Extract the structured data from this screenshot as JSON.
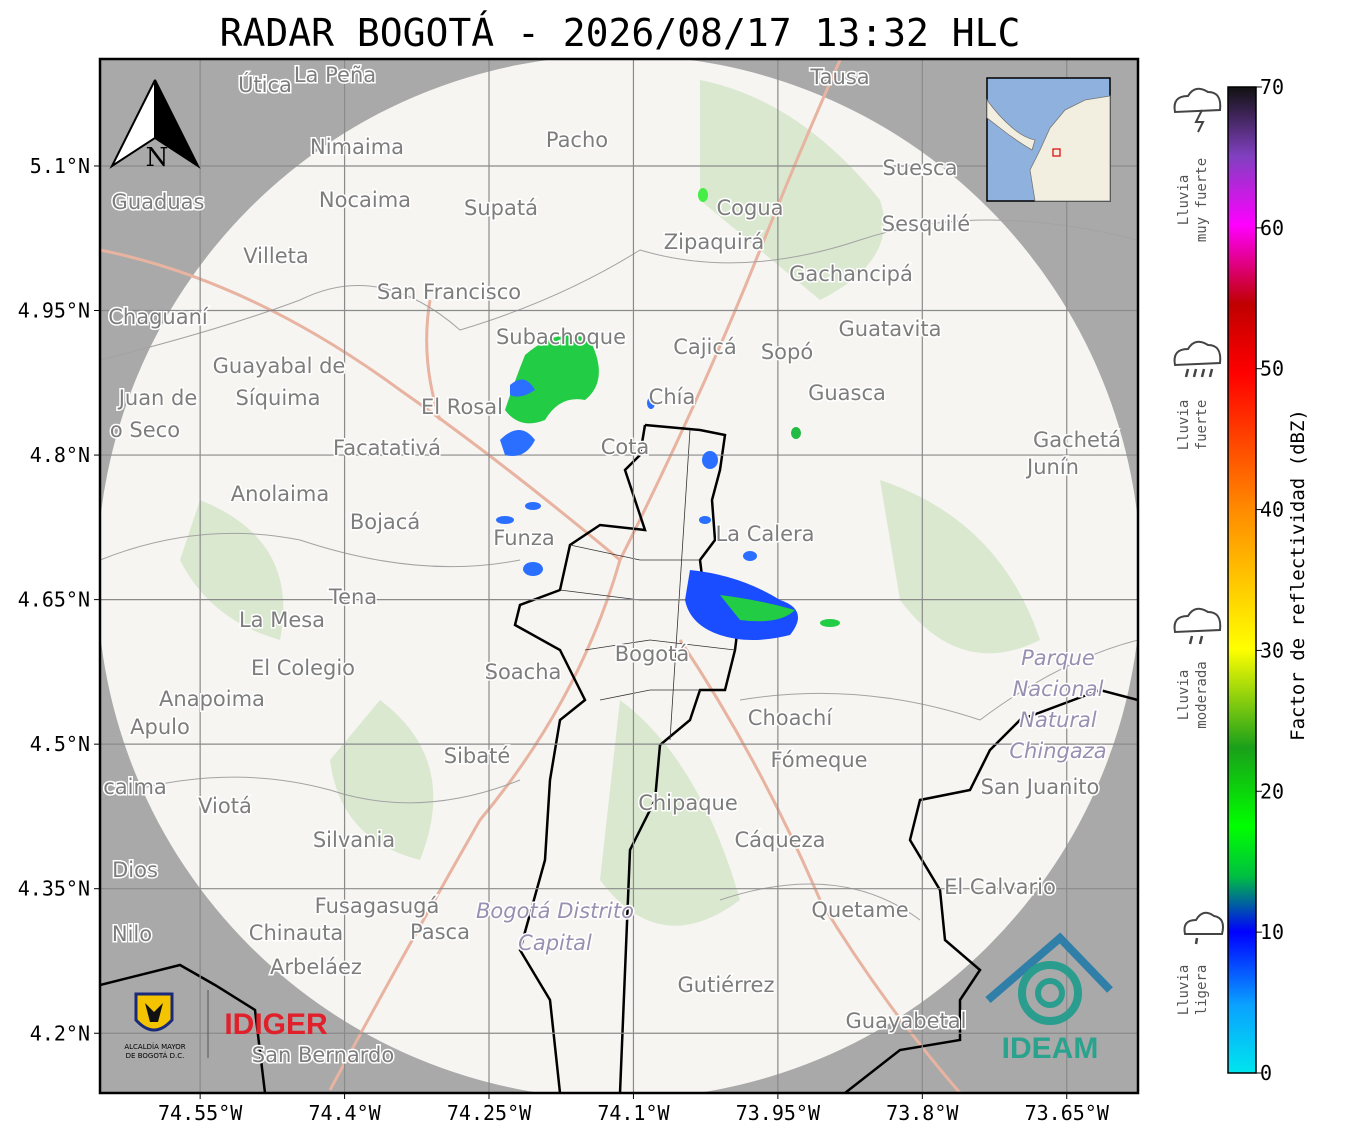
{
  "title": "RADAR BOGOTÁ - 2026/08/17 13:32 HLC",
  "map": {
    "xlim": [
      -74.654,
      -73.576
    ],
    "ylim": [
      4.138,
      5.211
    ],
    "xticks": [
      {
        "value": -74.55,
        "label": "74.55°W"
      },
      {
        "value": -74.4,
        "label": "74.4°W"
      },
      {
        "value": -74.25,
        "label": "74.25°W"
      },
      {
        "value": -74.1,
        "label": "74.1°W"
      },
      {
        "value": -73.95,
        "label": "73.95°W"
      },
      {
        "value": -73.8,
        "label": "73.8°W"
      },
      {
        "value": -73.65,
        "label": "73.65°W"
      }
    ],
    "yticks": [
      {
        "value": 5.1,
        "label": "5.1°N"
      },
      {
        "value": 4.95,
        "label": "4.95°N"
      },
      {
        "value": 4.8,
        "label": "4.8°N"
      },
      {
        "value": 4.65,
        "label": "4.65°N"
      },
      {
        "value": 4.5,
        "label": "4.5°N"
      },
      {
        "value": 4.35,
        "label": "4.35°N"
      },
      {
        "value": 4.2,
        "label": "4.2°N"
      }
    ],
    "grid": true,
    "north_label": "N",
    "places": [
      "Útica",
      "La Peña",
      "Tausa",
      "Pacho",
      "Nimaima",
      "Guaduas",
      "Nocaima",
      "Supatá",
      "Cogua",
      "Zipaquirá",
      "Suesca",
      "Sesquilé",
      "Villeta",
      "Gachancipá",
      "San Francisco",
      "Chaguaní",
      "Subachoque",
      "Cajicá",
      "Sopó",
      "Guatavita",
      "Guayabal de",
      "Síquima",
      "Juan de",
      "o Seco",
      "El Rosal",
      "Chía",
      "Guasca",
      "Facatativá",
      "Cota",
      "Gachetá",
      "Junín",
      "Anolaima",
      "Bojacá",
      "Funza",
      "La Calera",
      "Tena",
      "La Mesa",
      "El Colegio",
      "Soacha",
      "Bogotá",
      "Anapoima",
      "Apulo",
      "Choachí",
      "Sibaté",
      "Fómeque",
      "San Juanito",
      "caima",
      "Viotá",
      "Chipaque",
      "Silvania",
      "Cáqueza",
      "Dios",
      "El Calvario",
      "Fusagasugá",
      "Quetame",
      "Nilo",
      "Chinauta",
      "Pasca",
      "Arbeláez",
      "Gutiérrez",
      "Guayabetal",
      "San Bernardo"
    ],
    "areas": [
      [
        "Parque",
        "Nacional",
        "Natural",
        "Chingaza"
      ],
      [
        "Bogotá Distrito",
        "Capital"
      ]
    ]
  },
  "colorbar": {
    "label": "Factor de reflectividad (dBZ)",
    "lim": [
      0,
      70
    ],
    "ticks": [
      0,
      10,
      20,
      30,
      40,
      50,
      60,
      70
    ]
  },
  "rain_levels": [
    [
      "Lluvia",
      "muy fuerte"
    ],
    [
      "Lluvia",
      "fuerte"
    ],
    [
      "Lluvia",
      "moderada"
    ],
    [
      "Lluvia",
      "ligera"
    ]
  ],
  "logos": {
    "alcaldia": [
      "ALCALDÍA MAYOR",
      "DE BOGOTÁ D.C."
    ],
    "idiger": "IDIGER",
    "ideam": "IDEAM"
  }
}
